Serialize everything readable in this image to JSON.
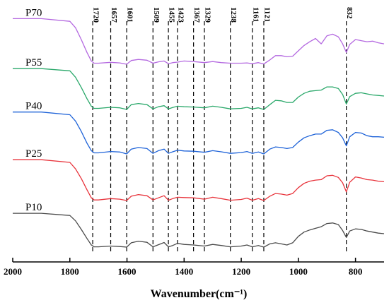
{
  "chart_data": {
    "type": "line",
    "xlabel": "Wavenumber(cm⁻¹)",
    "xlim": [
      2000,
      700
    ],
    "x_reversed": true,
    "x_ticks": [
      2000,
      1800,
      1600,
      1400,
      1200,
      1000,
      800
    ],
    "y_axis_visible": false,
    "grid": false,
    "peak_markers": [
      1720,
      1657,
      1601,
      1509,
      1455,
      1423,
      1367,
      1329,
      1238,
      1161,
      1121,
      832
    ],
    "peak_labels": [
      "1720",
      "1657",
      "1601",
      "1509",
      "1455",
      "1423",
      "1367",
      "1329",
      "1238",
      "1161",
      "1121",
      "832"
    ],
    "x": [
      2000,
      1900,
      1800,
      1780,
      1760,
      1740,
      1725,
      1715,
      1700,
      1657,
      1625,
      1601,
      1585,
      1560,
      1530,
      1509,
      1490,
      1470,
      1455,
      1440,
      1423,
      1400,
      1367,
      1329,
      1300,
      1270,
      1238,
      1200,
      1180,
      1161,
      1140,
      1121,
      1100,
      1080,
      1060,
      1040,
      1020,
      1000,
      980,
      960,
      940,
      920,
      900,
      880,
      860,
      845,
      832,
      820,
      800,
      780,
      760,
      740,
      720,
      700
    ],
    "series": [
      {
        "name": "P70",
        "color": "#b469e0",
        "values": [
          8.5,
          8.5,
          8.0,
          6.8,
          4.6,
          2.2,
          0.6,
          0.2,
          0.2,
          0.35,
          0.25,
          0.0,
          0.7,
          0.9,
          0.75,
          0.2,
          0.45,
          0.6,
          0.1,
          0.3,
          0.4,
          0.6,
          0.5,
          0.3,
          0.5,
          0.3,
          0.2,
          0.2,
          0.25,
          0.1,
          0.3,
          0.05,
          0.8,
          1.6,
          1.6,
          1.4,
          1.5,
          2.5,
          3.5,
          4.2,
          4.8,
          3.8,
          5.3,
          5.6,
          5.1,
          3.8,
          2.2,
          3.7,
          4.6,
          4.4,
          4.2,
          4.3,
          4.0,
          3.8
        ]
      },
      {
        "name": "P55",
        "color": "#2aa86a",
        "values": [
          7.6,
          7.6,
          7.2,
          6.0,
          4.1,
          2.0,
          0.6,
          0.2,
          0.2,
          0.4,
          0.3,
          0.0,
          0.9,
          1.1,
          0.9,
          0.1,
          0.5,
          0.7,
          0.1,
          0.35,
          0.6,
          0.5,
          0.45,
          0.3,
          0.6,
          0.4,
          0.1,
          0.2,
          0.4,
          0.1,
          0.3,
          0.0,
          0.9,
          1.7,
          1.6,
          1.3,
          1.3,
          2.3,
          3.0,
          3.4,
          3.5,
          3.6,
          4.2,
          4.2,
          3.9,
          2.8,
          1.0,
          2.4,
          3.0,
          3.1,
          2.9,
          2.7,
          2.6,
          2.5
        ]
      },
      {
        "name": "P40",
        "color": "#1d62d8",
        "values": [
          7.8,
          7.8,
          7.3,
          6.1,
          4.2,
          2.0,
          0.6,
          0.2,
          0.2,
          0.45,
          0.35,
          0.0,
          0.9,
          1.2,
          1.0,
          0.1,
          0.6,
          0.9,
          0.1,
          0.4,
          0.7,
          0.55,
          0.5,
          0.3,
          0.6,
          0.4,
          0.1,
          0.25,
          0.45,
          0.1,
          0.35,
          0.0,
          0.9,
          1.3,
          1.2,
          1.0,
          1.2,
          2.2,
          3.0,
          3.4,
          3.7,
          3.7,
          4.4,
          4.5,
          4.0,
          3.0,
          1.5,
          3.2,
          4.0,
          3.9,
          3.4,
          3.2,
          3.2,
          3.1
        ]
      },
      {
        "name": "P25",
        "color": "#e8333b",
        "values": [
          7.6,
          7.6,
          7.1,
          5.9,
          4.1,
          2.0,
          0.5,
          0.1,
          0.1,
          0.35,
          0.25,
          0.0,
          0.8,
          1.1,
          0.9,
          0.1,
          0.5,
          0.9,
          0.05,
          0.35,
          0.6,
          0.55,
          0.5,
          0.25,
          0.6,
          0.35,
          0.05,
          0.2,
          0.45,
          0.05,
          0.35,
          0.0,
          0.8,
          1.3,
          1.2,
          1.0,
          1.3,
          2.4,
          3.2,
          3.6,
          3.8,
          3.9,
          4.6,
          4.7,
          4.3,
          3.3,
          1.6,
          3.4,
          4.4,
          4.2,
          3.9,
          3.8,
          3.6,
          3.5
        ]
      },
      {
        "name": "P10",
        "color": "#4a4a4a",
        "values": [
          6.3,
          6.3,
          5.9,
          4.9,
          3.3,
          1.6,
          0.4,
          0.05,
          0.05,
          0.2,
          0.1,
          0.0,
          0.8,
          1.1,
          0.9,
          0.05,
          0.45,
          0.85,
          0.05,
          0.3,
          0.7,
          0.5,
          0.4,
          0.2,
          0.5,
          0.3,
          0.05,
          0.2,
          0.4,
          0.05,
          0.3,
          0.0,
          0.6,
          0.8,
          0.6,
          0.4,
          0.8,
          2.0,
          2.8,
          3.2,
          3.5,
          3.8,
          4.4,
          4.5,
          4.2,
          3.1,
          1.8,
          3.0,
          3.4,
          3.3,
          3.0,
          2.8,
          2.6,
          2.5
        ]
      }
    ]
  }
}
